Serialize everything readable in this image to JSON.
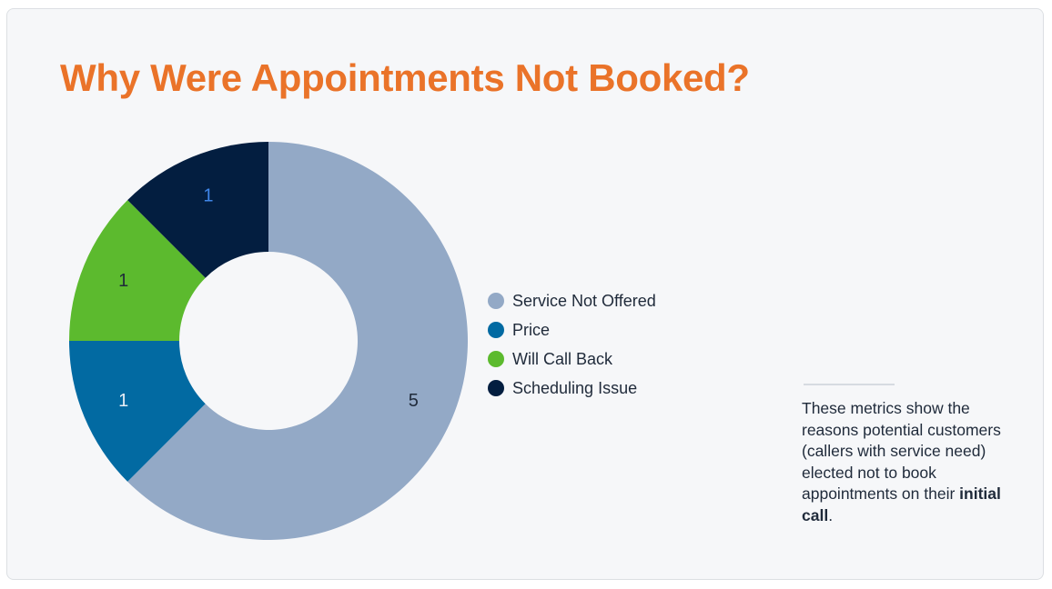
{
  "title": "Why Were Appointments Not Booked?",
  "chart_data": {
    "type": "pie",
    "style": "donut",
    "categories": [
      "Service Not Offered",
      "Price",
      "Will Call Back",
      "Scheduling Issue"
    ],
    "values": [
      5,
      1,
      1,
      1
    ],
    "colors": [
      "#93a9c6",
      "#026aa2",
      "#5cba2e",
      "#031e40"
    ],
    "data_labels": [
      "5",
      "1",
      "1",
      "1"
    ],
    "label_colors": [
      "#1f2a3a",
      "#e8eef5",
      "#1f2a3a",
      "#3f86e8"
    ],
    "legend_position": "right"
  },
  "note": {
    "text_before": "These metrics show the reasons potential customers (callers with service need) elected not to book appointments on their ",
    "bold": "initial call",
    "text_after": "."
  }
}
